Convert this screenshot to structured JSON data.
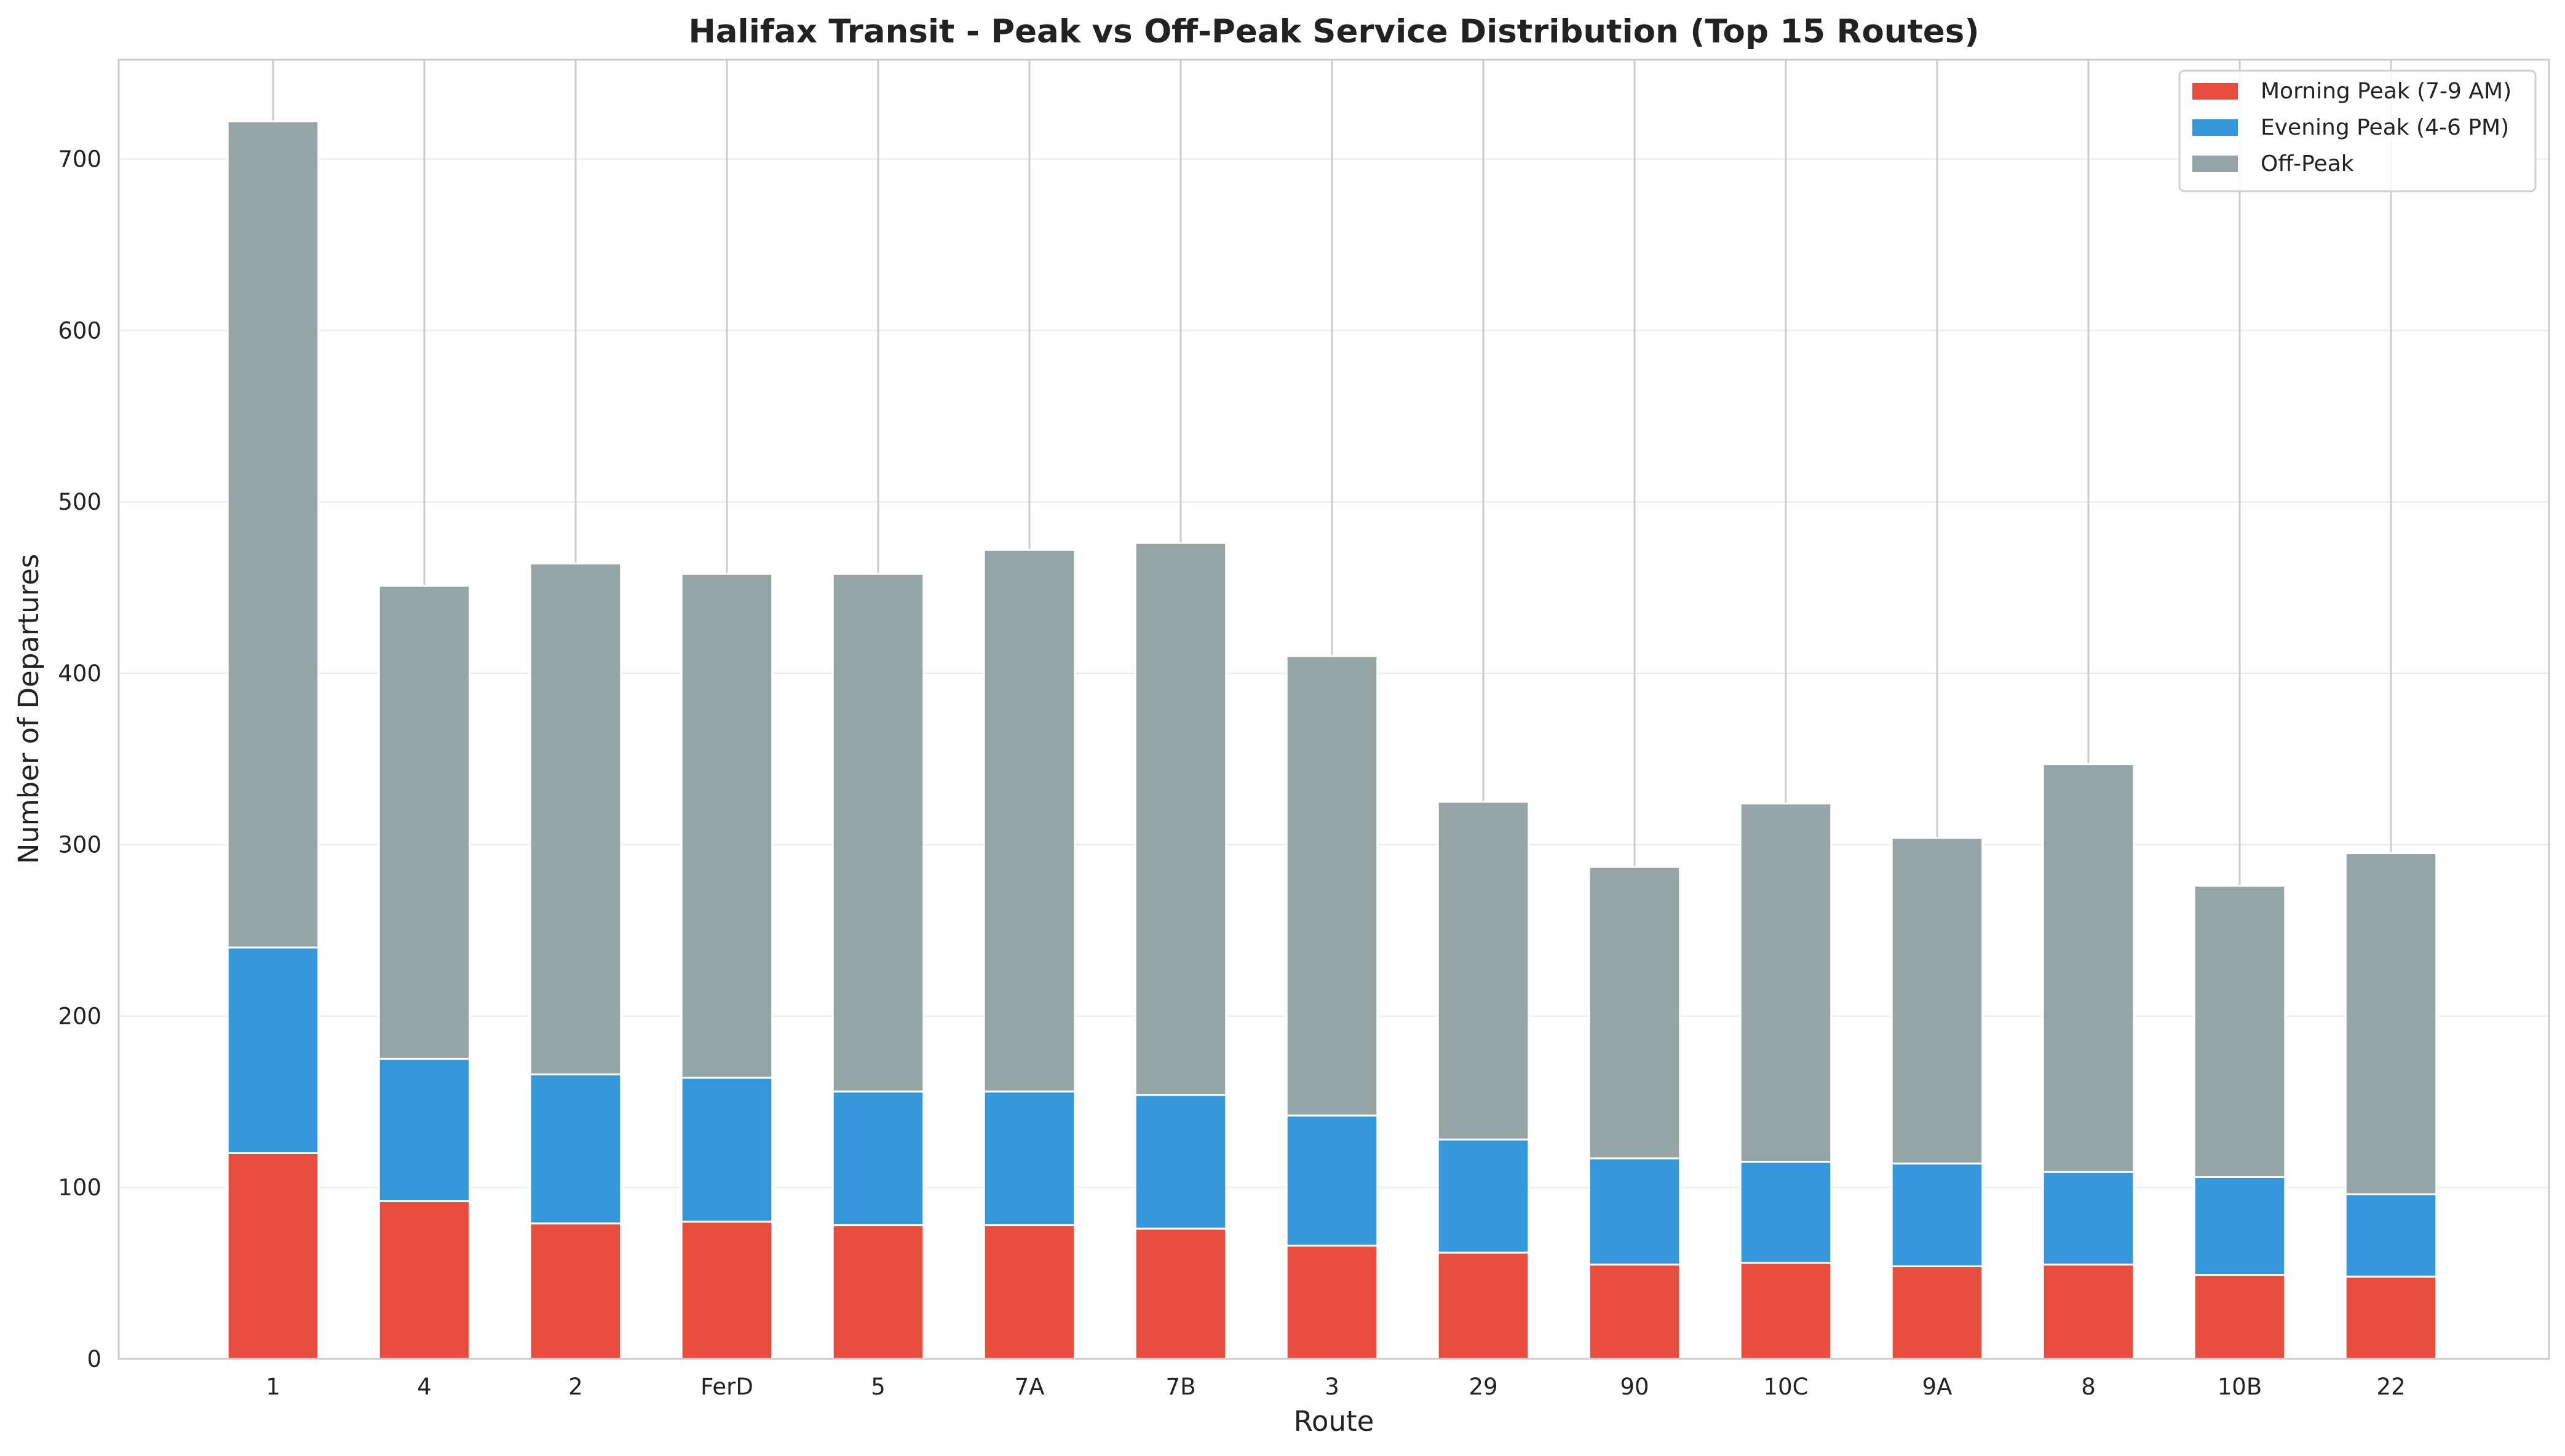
{
  "chart_data": {
    "type": "bar",
    "stacked": true,
    "title": "Halifax Transit - Peak vs Off-Peak Service Distribution (Top 15 Routes)",
    "xlabel": "Route",
    "ylabel": "Number of Departures",
    "ylim": [
      0,
      758
    ],
    "yticks": [
      0,
      100,
      200,
      300,
      400,
      500,
      600,
      700
    ],
    "grid": "y",
    "legend_position": "top-right",
    "categories": [
      "1",
      "4",
      "2",
      "FerD",
      "5",
      "7A",
      "7B",
      "3",
      "29",
      "90",
      "10C",
      "9A",
      "8",
      "10B",
      "22"
    ],
    "series": [
      {
        "name": "Morning Peak (7-9 AM)",
        "color": "#e74c3c",
        "values": [
          120,
          92,
          79,
          80,
          78,
          78,
          76,
          66,
          62,
          55,
          56,
          54,
          55,
          49,
          48
        ]
      },
      {
        "name": "Evening Peak (4-6 PM)",
        "color": "#3498db",
        "values": [
          120,
          83,
          87,
          84,
          78,
          78,
          78,
          76,
          66,
          62,
          59,
          60,
          54,
          57,
          48
        ]
      },
      {
        "name": "Off-Peak",
        "color": "#95a5a6",
        "values": [
          482,
          276,
          298,
          294,
          302,
          316,
          322,
          268,
          197,
          170,
          209,
          190,
          238,
          170,
          199
        ]
      }
    ]
  }
}
